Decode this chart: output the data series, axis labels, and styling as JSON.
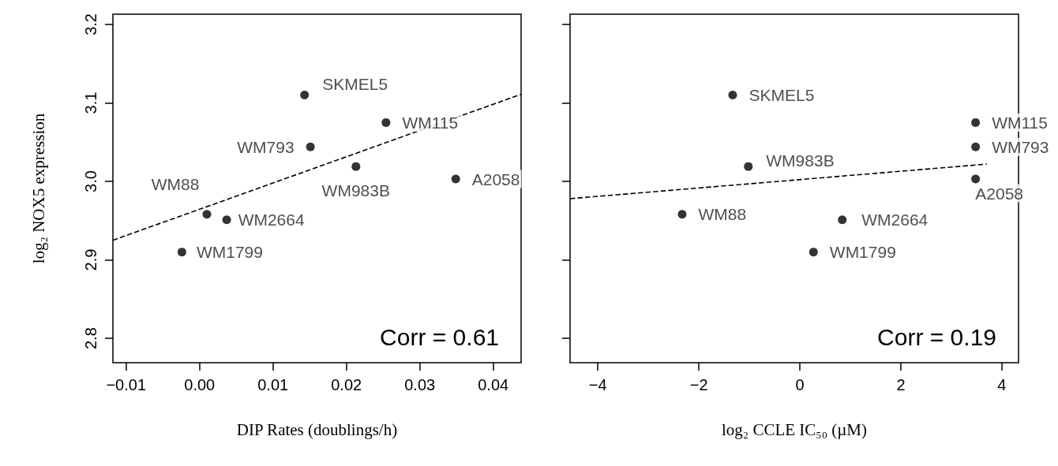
{
  "chart_data": [
    {
      "type": "scatter",
      "xlabel": "DIP Rates (doublings/h)",
      "ylabel": "log₂ NOX5 expression",
      "marker": "circle",
      "grid": false,
      "legend": false,
      "xlim": [
        -0.0118,
        0.0438
      ],
      "ylim": [
        2.769,
        3.213
      ],
      "xticks": [
        {
          "value": -0.01,
          "label": "−0.01"
        },
        {
          "value": 0,
          "label": "0.00"
        },
        {
          "value": 0.01,
          "label": "0.01"
        },
        {
          "value": 0.02,
          "label": "0.02"
        },
        {
          "value": 0.03,
          "label": "0.03"
        },
        {
          "value": 0.04,
          "label": "0.04"
        }
      ],
      "yticks": [
        {
          "value": 2.8,
          "label": "2.8"
        },
        {
          "value": 2.9,
          "label": "2.9"
        },
        {
          "value": 3.0,
          "label": "3.0"
        },
        {
          "value": 3.1,
          "label": "3.1"
        },
        {
          "value": 3.2,
          "label": "3.2"
        }
      ],
      "annotations": [
        "Corr = 0.61"
      ],
      "series": [
        {
          "name": "SKMEL5",
          "color": "#000000",
          "x": [
            0.0143
          ],
          "values": [
            3.11
          ]
        },
        {
          "name": "WM793",
          "color": "#000000",
          "x": [
            0.0151
          ],
          "values": [
            3.044
          ]
        },
        {
          "name": "WM115",
          "color": "#000000",
          "x": [
            0.0254
          ],
          "values": [
            3.075
          ]
        },
        {
          "name": "WM983B",
          "color": "#000000",
          "x": [
            0.0213
          ],
          "values": [
            3.019
          ]
        },
        {
          "name": "A2058",
          "color": "#000000",
          "x": [
            0.0349
          ],
          "values": [
            3.003
          ]
        },
        {
          "name": "WM88",
          "color": "#000000",
          "x": [
            0.001
          ],
          "values": [
            2.958
          ]
        },
        {
          "name": "WM2664",
          "color": "#000000",
          "x": [
            0.0037
          ],
          "values": [
            2.951
          ]
        },
        {
          "name": "WM1799",
          "color": "#000000",
          "x": [
            -0.0024
          ],
          "values": [
            2.91
          ]
        },
        {
          "type": "line",
          "color": "#000000",
          "line_style": "dashed",
          "marker": "none",
          "x": [
            -0.0118,
            0.0438
          ],
          "values": [
            2.925,
            3.111
          ]
        }
      ]
    },
    {
      "type": "scatter",
      "xlabel": "log₂ CCLE IC₅₀ (µM)",
      "marker": "circle",
      "grid": false,
      "legend": false,
      "tick_labels": "x",
      "xlim": [
        -4.55,
        4.33
      ],
      "ylim": [
        2.769,
        3.213
      ],
      "xticks": [
        {
          "value": -4,
          "label": "−4"
        },
        {
          "value": -2,
          "label": "−2"
        },
        0,
        2,
        4
      ],
      "yticks": [
        {
          "value": 2.8,
          "label": null
        },
        {
          "value": 2.9,
          "label": null
        },
        {
          "value": 3.0,
          "label": null
        },
        {
          "value": 3.1,
          "label": null
        },
        {
          "value": 3.2,
          "label": null
        }
      ],
      "annotations": [
        "Corr = 0.19"
      ],
      "series": [
        {
          "name": "SKMEL5",
          "color": "#000000",
          "x": [
            -1.33
          ],
          "values": [
            3.11
          ]
        },
        {
          "name": "WM115",
          "color": "#000000",
          "x": [
            3.48
          ],
          "values": [
            3.075
          ]
        },
        {
          "name": "WM793",
          "color": "#000000",
          "x": [
            3.48
          ],
          "values": [
            3.044
          ]
        },
        {
          "name": "A2058",
          "color": "#000000",
          "x": [
            3.48
          ],
          "values": [
            3.003
          ]
        },
        {
          "name": "WM983B",
          "color": "#000000",
          "x": [
            -1.02
          ],
          "values": [
            3.019
          ]
        },
        {
          "name": "WM88",
          "color": "#000000",
          "x": [
            -2.33
          ],
          "values": [
            2.958
          ]
        },
        {
          "name": "WM2664",
          "color": "#000000",
          "x": [
            0.84
          ],
          "values": [
            2.951
          ]
        },
        {
          "name": "WM1799",
          "color": "#000000",
          "x": [
            0.27
          ],
          "values": [
            2.91
          ]
        },
        {
          "type": "line",
          "color": "#000000",
          "line_style": "dashed",
          "marker": "none",
          "x": [
            -4.55,
            3.7
          ],
          "values": [
            2.978,
            3.022
          ]
        }
      ]
    }
  ]
}
